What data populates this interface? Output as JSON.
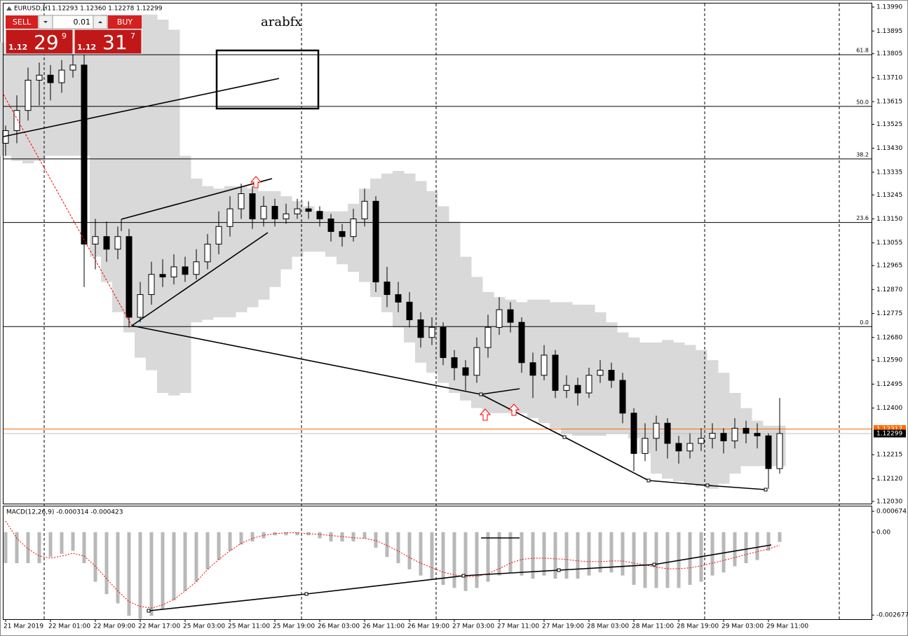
{
  "chart_data": {
    "type": "candlestick",
    "title": "EURUSD,H1",
    "subtitle": "1.12293 1.12360 1.12278 1.12299",
    "annotation": "arabfx",
    "categories": [
      "21 Mar 2019",
      null,
      null,
      null,
      "22 Mar 01:00",
      null,
      null,
      null,
      "22 Mar 09:00",
      null,
      null,
      null,
      "22 Mar 17:00",
      null,
      null,
      null,
      "25 Mar 03:00",
      null,
      null,
      null,
      "25 Mar 11:00",
      null,
      null,
      null,
      "25 Mar 19:00",
      null,
      null,
      null,
      "26 Mar 03:00",
      null,
      null,
      null,
      "26 Mar 11:00",
      null,
      null,
      null,
      "26 Mar 19:00",
      null,
      null,
      null,
      "27 Mar 03:00",
      null,
      null,
      null,
      "27 Mar 11:00",
      null,
      null,
      null,
      "27 Mar 19:00",
      null,
      null,
      null,
      "28 Mar 03:00",
      null,
      null,
      null,
      "28 Mar 11:00",
      null,
      null,
      null,
      "28 Mar 19:00",
      null,
      null,
      null,
      "29 Mar 03:00",
      null,
      null,
      null,
      "29 Mar 11:00",
      null
    ],
    "open": [
      1.1345,
      1.135,
      1.1358,
      1.137,
      1.1372,
      1.1369,
      1.1374,
      1.1376,
      1.1305,
      1.1308,
      1.1303,
      1.1308,
      1.1276,
      1.1285,
      1.1293,
      1.1292,
      1.1296,
      1.1293,
      1.1298,
      1.1305,
      1.1312,
      1.1319,
      1.1325,
      1.1315,
      1.132,
      1.1315,
      1.1317,
      1.1319,
      1.1318,
      1.1315,
      1.131,
      1.1308,
      1.1315,
      1.1322,
      1.129,
      1.1285,
      1.1282,
      1.1275,
      1.1268,
      1.1272,
      1.126,
      1.1256,
      1.1253,
      1.1264,
      1.1272,
      1.1279,
      1.1274,
      1.1258,
      1.1253,
      1.1261,
      1.1247,
      1.1249,
      1.1246,
      1.1253,
      1.1255,
      1.1251,
      1.1238,
      1.1222,
      1.1228,
      1.1234,
      1.1226,
      1.1223,
      1.1226,
      1.1228,
      1.123,
      1.1227,
      1.1232,
      1.123,
      1.1229,
      1.1216
    ],
    "high": [
      1.1352,
      1.1364,
      1.1375,
      1.1377,
      1.1376,
      1.1378,
      1.1381,
      1.1381,
      1.1315,
      1.1314,
      1.1312,
      1.1311,
      1.129,
      1.1298,
      1.1299,
      1.1301,
      1.13,
      1.1303,
      1.1309,
      1.1318,
      1.1324,
      1.1329,
      1.1328,
      1.1324,
      1.1323,
      1.1321,
      1.1323,
      1.1322,
      1.132,
      1.1317,
      1.1313,
      1.1319,
      1.1327,
      1.1324,
      1.1296,
      1.129,
      1.1286,
      1.1278,
      1.1276,
      1.1274,
      1.1263,
      1.1259,
      1.1268,
      1.1277,
      1.1284,
      1.1282,
      1.1276,
      1.1262,
      1.1265,
      1.1263,
      1.1253,
      1.1252,
      1.1256,
      1.1259,
      1.1258,
      1.1254,
      1.124,
      1.1234,
      1.1237,
      1.1236,
      1.1229,
      1.123,
      1.1232,
      1.1234,
      1.1232,
      1.1236,
      1.1235,
      1.1234,
      1.123,
      1.1244
    ],
    "low": [
      1.134,
      1.1345,
      1.1354,
      1.136,
      1.1362,
      1.1365,
      1.1371,
      1.1288,
      1.1295,
      1.1298,
      1.1299,
      1.1272,
      1.1274,
      1.1281,
      1.1288,
      1.1289,
      1.129,
      1.1291,
      1.1295,
      1.1301,
      1.1308,
      1.1315,
      1.1311,
      1.1312,
      1.1312,
      1.1313,
      1.1315,
      1.1315,
      1.1312,
      1.1306,
      1.1304,
      1.1306,
      1.1312,
      1.1286,
      1.128,
      1.1278,
      1.1272,
      1.1264,
      1.1265,
      1.1257,
      1.1251,
      1.1247,
      1.125,
      1.126,
      1.1269,
      1.127,
      1.1254,
      1.1244,
      1.1251,
      1.1244,
      1.1244,
      1.1241,
      1.1244,
      1.125,
      1.1248,
      1.1234,
      1.1215,
      1.1219,
      1.1223,
      1.122,
      1.1218,
      1.122,
      1.1223,
      1.1224,
      1.1222,
      1.1224,
      1.1226,
      1.1224,
      1.1208,
      1.1214
    ],
    "close": [
      1.135,
      1.1358,
      1.137,
      1.1372,
      1.1369,
      1.1374,
      1.1376,
      1.1305,
      1.1308,
      1.1303,
      1.1308,
      1.1276,
      1.1285,
      1.1293,
      1.1292,
      1.1296,
      1.1293,
      1.1298,
      1.1305,
      1.1312,
      1.1319,
      1.1325,
      1.1315,
      1.132,
      1.1315,
      1.1317,
      1.1319,
      1.1318,
      1.1315,
      1.131,
      1.1308,
      1.1315,
      1.1322,
      1.129,
      1.1285,
      1.1282,
      1.1275,
      1.1268,
      1.1272,
      1.126,
      1.1256,
      1.1253,
      1.1264,
      1.1272,
      1.1279,
      1.1274,
      1.1258,
      1.1253,
      1.1261,
      1.1247,
      1.1249,
      1.1246,
      1.1253,
      1.1255,
      1.1251,
      1.1238,
      1.1222,
      1.1228,
      1.1234,
      1.1226,
      1.1223,
      1.1226,
      1.1228,
      1.123,
      1.1227,
      1.1232,
      1.123,
      1.1229,
      1.1216,
      1.12299
    ],
    "up_color": "#ffffff",
    "down_color": "#000000",
    "band": {
      "color": "#d9d9d9",
      "upper": [
        1.1385,
        1.1387,
        1.1389,
        1.139,
        1.1391,
        1.1392,
        1.1393,
        1.1394,
        1.1395,
        1.1396,
        1.1396,
        1.1396,
        1.1396,
        1.1396,
        1.1394,
        1.139,
        1.134,
        1.1331,
        1.1328,
        1.1327,
        1.1328,
        1.1328,
        1.1327,
        1.1326,
        1.1326,
        1.1324,
        1.1322,
        1.132,
        1.1318,
        1.1318,
        1.1318,
        1.1321,
        1.1327,
        1.1331,
        1.1333,
        1.1334,
        1.1333,
        1.133,
        1.1326,
        1.132,
        1.1314,
        1.13,
        1.1292,
        1.1286,
        1.1284,
        1.1283,
        1.1282,
        1.1283,
        1.1283,
        1.1282,
        1.1282,
        1.1281,
        1.1281,
        1.1278,
        1.1274,
        1.127,
        1.1268,
        1.1266,
        1.1266,
        1.1267,
        1.1266,
        1.1265,
        1.1263,
        1.1259,
        1.1254,
        1.1246,
        1.124,
        1.1235,
        1.1233,
        1.1233
      ],
      "lower": [
        1.134,
        1.1338,
        1.1337,
        1.1338,
        1.134,
        1.134,
        1.134,
        1.134,
        1.13,
        1.129,
        1.1278,
        1.127,
        1.126,
        1.1255,
        1.1246,
        1.1245,
        1.1246,
        1.1274,
        1.1275,
        1.1276,
        1.1276,
        1.1278,
        1.128,
        1.1283,
        1.1288,
        1.1295,
        1.13,
        1.1302,
        1.1302,
        1.13,
        1.1297,
        1.1294,
        1.129,
        1.1284,
        1.1278,
        1.1272,
        1.1266,
        1.1258,
        1.1254,
        1.125,
        1.1246,
        1.1243,
        1.124,
        1.1238,
        1.1238,
        1.1238,
        1.1238,
        1.1236,
        1.1234,
        1.1232,
        1.123,
        1.1229,
        1.1229,
        1.1229,
        1.123,
        1.123,
        1.1228,
        1.1222,
        1.1214,
        1.1212,
        1.1211,
        1.121,
        1.1209,
        1.1208,
        1.121,
        1.1214,
        1.1217,
        1.1217,
        1.1217,
        1.1217
      ]
    },
    "ylim": [
      1.12024,
      1.14004
    ],
    "yticks": [
      {
        "value": 1.1399,
        "label": "1.13990"
      },
      1.13895,
      1.13805,
      {
        "value": 1.1371,
        "label": "1.13710"
      },
      1.13615,
      1.13525,
      {
        "value": 1.1343,
        "label": "1.13430"
      },
      1.13335,
      1.13245,
      {
        "value": 1.1315,
        "label": "1.13150"
      },
      1.13055,
      1.12965,
      {
        "value": 1.1287,
        "label": "1.12870"
      },
      1.12775,
      {
        "value": 1.1268,
        "label": "1.12680"
      },
      {
        "value": 1.1259,
        "label": "1.12590"
      },
      1.12495,
      {
        "value": 1.124,
        "label": "1.12400"
      },
      1.12215,
      {
        "value": 1.1212,
        "label": "1.12120"
      },
      {
        "value": 1.1203,
        "label": "1.12030"
      }
    ],
    "levels": [
      {
        "label": "61.8",
        "value": 1.13801
      },
      {
        "label": "50.0",
        "value": 1.13596
      },
      {
        "label": "38.2",
        "value": 1.13388
      },
      {
        "label": "23.6",
        "value": 1.13136
      },
      {
        "label": "0.0",
        "value": 1.12723
      }
    ],
    "ask": 1.12317,
    "ask_color": "#ff6a00",
    "bid": 1.12299,
    "bid_color": "#000000",
    "macd": {
      "label": "MACD(12,26,9) -0.000314 -0.000423",
      "color": "#b8b8b8",
      "signal_color": "#ff0000",
      "values": [
        -0.001,
        -0.001,
        -0.001,
        -0.001,
        -0.0008,
        -0.0007,
        -0.0006,
        -0.001,
        -0.0016,
        -0.002,
        -0.0023,
        -0.0027,
        -0.0028,
        -0.0027,
        -0.0025,
        -0.0022,
        -0.0019,
        -0.0016,
        -0.0012,
        -0.0009,
        -0.0006,
        -0.0004,
        -0.0003,
        -0.0002,
        -0.0001,
        -0.0001,
        -0.0001,
        -0.0001,
        -0.0002,
        -0.0003,
        -0.0003,
        -0.0003,
        -0.0002,
        -0.0005,
        -0.0008,
        -0.001,
        -0.0012,
        -0.0014,
        -0.0015,
        -0.0017,
        -0.0018,
        -0.0019,
        -0.0018,
        -0.0016,
        -0.0014,
        -0.0013,
        -0.0014,
        -0.0015,
        -0.0014,
        -0.0015,
        -0.0015,
        -0.0015,
        -0.0014,
        -0.0013,
        -0.0013,
        -0.0014,
        -0.0017,
        -0.0018,
        -0.0018,
        -0.0018,
        -0.0018,
        -0.0017,
        -0.0016,
        -0.0014,
        -0.0013,
        -0.0011,
        -0.001,
        -0.0009,
        -0.0006,
        -0.000314
      ],
      "signal": [
        0.00036,
        -0.0002,
        -0.00054,
        -0.00077,
        -0.00084,
        -0.00077,
        -0.00068,
        -0.00077,
        -0.0011,
        -0.0015,
        -0.0019,
        -0.00224,
        -0.0024,
        -0.00245,
        -0.00235,
        -0.00217,
        -0.0019,
        -0.0016,
        -0.0012,
        -0.00088,
        -0.0006,
        -0.00036,
        -0.0002,
        -0.0001,
        -5e-05,
        -2e-05,
        -2e-05,
        -5e-05,
        -7e-05,
        -0.00011,
        -0.00014,
        -0.00018,
        -0.0002,
        -0.00027,
        -0.00043,
        -0.00061,
        -0.00082,
        -0.001,
        -0.00115,
        -0.00129,
        -0.00138,
        -0.00143,
        -0.00143,
        -0.00134,
        -0.00118,
        -0.001,
        -0.00088,
        -0.00084,
        -0.00084,
        -0.00086,
        -0.00088,
        -0.00093,
        -0.00095,
        -0.00095,
        -0.00093,
        -0.00093,
        -0.001,
        -0.00106,
        -0.00113,
        -0.00118,
        -0.00118,
        -0.00115,
        -0.00109,
        -0.001,
        -0.00091,
        -0.00082,
        -0.00072,
        -0.00063,
        -0.00054,
        -0.000423
      ],
      "ylim": [
        -0.00281,
        0.000855
      ],
      "yticks": [
        0.000674,
        {
          "value": 0,
          "label": "0.00"
        },
        -0.002677
      ]
    }
  },
  "trade_panel": {
    "sell": "SELL",
    "buy": "BUY",
    "lot": "0.01",
    "sell_price": {
      "big": "1.12",
      "pips": "29",
      "fraction": "9"
    },
    "buy_price": {
      "big": "1.12",
      "pips": "31",
      "fraction": "7"
    }
  }
}
